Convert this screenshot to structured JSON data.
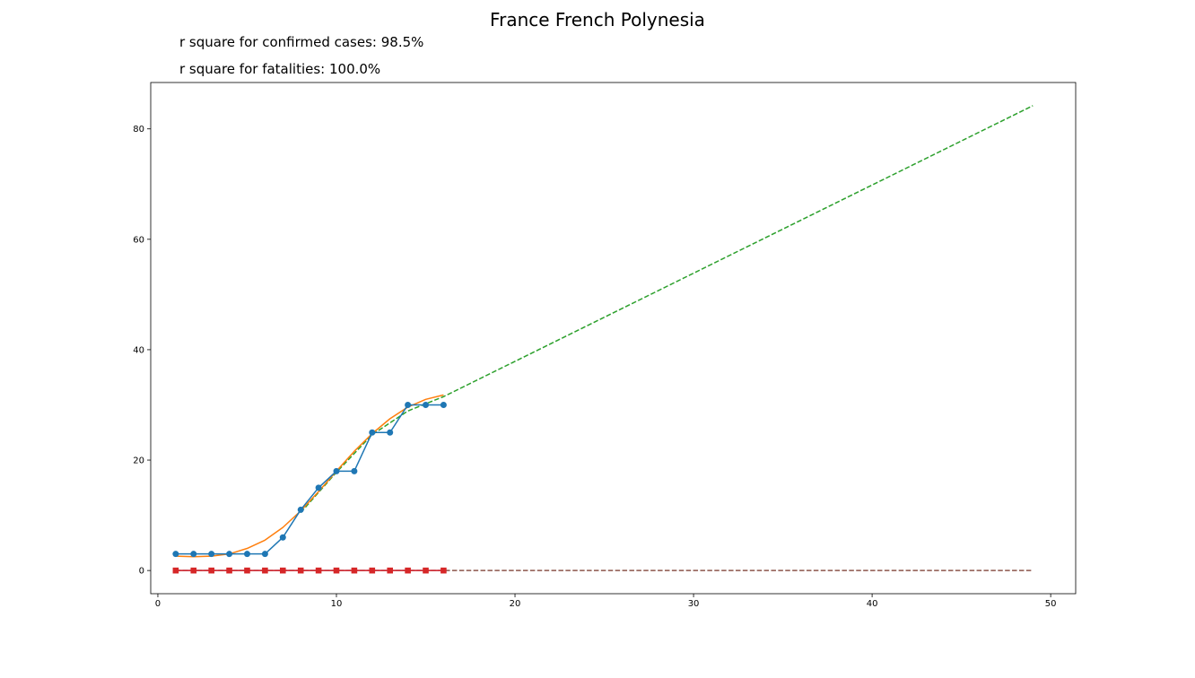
{
  "chart_data": {
    "type": "line",
    "title": "France French Polynesia",
    "annotations": [
      "r square for confirmed cases: 98.5%",
      "r square for fatalities: 100.0%"
    ],
    "xlabel": "",
    "ylabel": "",
    "xlim": [
      -0.4,
      51.4
    ],
    "ylim": [
      -4.2,
      88.4
    ],
    "xticks": [
      0,
      10,
      20,
      30,
      40,
      50
    ],
    "yticks": [
      0,
      20,
      40,
      60,
      80
    ],
    "grid": false,
    "series": [
      {
        "role": "confirmed cases",
        "color": "#1f77b4",
        "marker": "circle",
        "style": "solid",
        "x": [
          1,
          2,
          3,
          4,
          5,
          6,
          7,
          8,
          9,
          10,
          11,
          12,
          13,
          14,
          15,
          16
        ],
        "y": [
          3,
          3,
          3,
          3,
          3,
          3,
          6,
          11,
          15,
          18,
          18,
          25,
          25,
          30,
          30,
          30
        ]
      },
      {
        "role": "confirmed fit",
        "color": "#ff7f0e",
        "marker": "none",
        "style": "solid",
        "x": [
          1,
          2,
          3,
          4,
          5,
          6,
          7,
          8,
          9,
          10,
          11,
          12,
          13,
          14,
          15,
          16
        ],
        "y": [
          2.6,
          2.5,
          2.6,
          3.0,
          4.0,
          5.5,
          7.8,
          10.8,
          14.3,
          18.0,
          21.6,
          24.8,
          27.5,
          29.6,
          31.0,
          31.8
        ]
      },
      {
        "role": "confirmed projection",
        "color": "#2ca02c",
        "marker": "none",
        "style": "dashed",
        "x": [
          8,
          10,
          12,
          14,
          16,
          49
        ],
        "y": [
          10.5,
          17.8,
          24.6,
          28.9,
          31.5,
          84.2
        ]
      },
      {
        "role": "fatalities",
        "color": "#d62728",
        "marker": "square",
        "style": "solid",
        "x": [
          1,
          2,
          3,
          4,
          5,
          6,
          7,
          8,
          9,
          10,
          11,
          12,
          13,
          14,
          15,
          16
        ],
        "y": [
          0,
          0,
          0,
          0,
          0,
          0,
          0,
          0,
          0,
          0,
          0,
          0,
          0,
          0,
          0,
          0
        ]
      },
      {
        "role": "fatalities fit",
        "color": "#9467bd",
        "marker": "none",
        "style": "solid",
        "x": [
          1,
          16
        ],
        "y": [
          0,
          0
        ]
      },
      {
        "role": "fatalities projection",
        "color": "#8c564b",
        "marker": "none",
        "style": "dashed",
        "x": [
          1,
          49
        ],
        "y": [
          0,
          0
        ]
      }
    ]
  }
}
